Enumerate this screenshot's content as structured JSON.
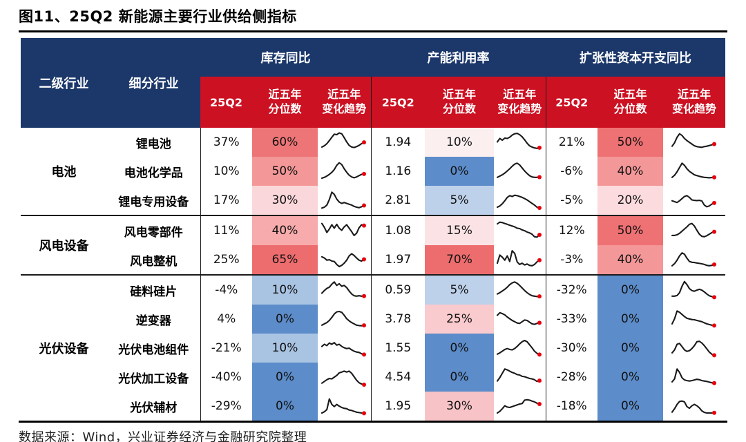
{
  "title": "图11、25Q2 新能源主要行业供给侧指标",
  "source_note": "数据来源：Wind，兴业证券经济与金融研究院整理",
  "colors": {
    "header_navy": "#1C386B",
    "header_red": "#CC1122",
    "scale_high_red": "#ED6D6F",
    "scale_low_blue": "#5C8CC9",
    "spark_line": "#1a1a1a",
    "spark_dot": "#E8000D"
  },
  "chart_data": {
    "type": "table",
    "title": "图11、25Q2 新能源主要行业供给侧指标",
    "header": {
      "col_industry": "二级行业",
      "col_sub": "细分行业",
      "groups": [
        "库存同比",
        "产能利用率",
        "扩张性资本开支同比"
      ],
      "sub_q": "25Q2",
      "sub_pct": "近五年\n分位数",
      "sub_trend": "近五年\n变化趋势"
    },
    "row_groups": [
      {
        "industry": "电池",
        "rows": [
          {
            "name": "锂电池",
            "metrics": [
              {
                "q": "37%",
                "p": "60%",
                "bg": "#EE7577",
                "spark": [
                  2.6,
                  3.2,
                  4.2,
                  5.6,
                  7.2,
                  8.6,
                  8.4,
                  9.2,
                  8.8,
                  7.0,
                  5.0,
                  3.4,
                  2.6,
                  2.4,
                  2.8,
                  3.4,
                  4.2,
                  4.8
                ]
              },
              {
                "q": "1.94",
                "p": "10%",
                "bg": "#FCEFF0",
                "spark": [
                  5.0,
                  6.6,
                  5.8,
                  6.8,
                  6.6,
                  7.2,
                  8.2,
                  8.8,
                  9.0,
                  8.4,
                  7.4,
                  6.0,
                  4.4,
                  3.2,
                  2.6,
                  2.2,
                  2.0,
                  2.3
                ]
              },
              {
                "q": "21%",
                "p": "50%",
                "bg": "#EE7173",
                "spark": [
                  3.0,
                  4.6,
                  7.2,
                  8.8,
                  8.0,
                  6.6,
                  5.6,
                  4.8,
                  4.0,
                  3.2,
                  2.8,
                  2.6,
                  2.5,
                  2.8,
                  3.0,
                  3.3,
                  3.6,
                  4.0
                ]
              }
            ]
          },
          {
            "name": "电池化学品",
            "metrics": [
              {
                "q": "10%",
                "p": "50%",
                "bg": "#F49798",
                "spark": [
                  1.6,
                  2.0,
                  2.6,
                  3.4,
                  4.4,
                  5.6,
                  7.6,
                  8.8,
                  8.0,
                  6.0,
                  4.4,
                  3.0,
                  2.2,
                  1.8,
                  2.2,
                  2.8,
                  3.4,
                  3.6
                ]
              },
              {
                "q": "1.16",
                "p": "0%",
                "bg": "#5C8CC9",
                "spark": [
                  2.0,
                  2.6,
                  3.2,
                  4.0,
                  5.0,
                  6.0,
                  7.2,
                  8.2,
                  8.6,
                  7.8,
                  6.4,
                  5.0,
                  3.8,
                  2.8,
                  2.2,
                  2.0,
                  2.0,
                  2.1
                ]
              },
              {
                "q": "-6%",
                "p": "40%",
                "bg": "#F49798",
                "spark": [
                  2.0,
                  3.0,
                  4.6,
                  6.6,
                  8.6,
                  7.6,
                  6.0,
                  4.8,
                  4.0,
                  3.2,
                  2.8,
                  2.5,
                  2.2,
                  2.0,
                  1.9,
                  1.8,
                  1.9,
                  2.0
                ]
              }
            ]
          },
          {
            "name": "锂电专用设备",
            "metrics": [
              {
                "q": "17%",
                "p": "30%",
                "bg": "#FAD7DA",
                "spark": [
                  1.2,
                  1.6,
                  2.6,
                  5.2,
                  8.6,
                  7.6,
                  5.4,
                  4.0,
                  3.4,
                  3.8,
                  3.4,
                  3.0,
                  2.6,
                  2.0,
                  1.6,
                  1.4,
                  1.8,
                  2.4
                ]
              },
              {
                "q": "2.81",
                "p": "5%",
                "bg": "#BED1EA",
                "spark": [
                  1.6,
                  2.2,
                  3.2,
                  4.6,
                  6.2,
                  7.0,
                  6.6,
                  7.2,
                  7.0,
                  6.6,
                  6.2,
                  5.6,
                  5.0,
                  4.2,
                  3.4,
                  2.6,
                  1.6,
                  1.3
                ]
              },
              {
                "q": "-5%",
                "p": "20%",
                "bg": "#FBDBDE",
                "spark": [
                  4.6,
                  4.2,
                  3.8,
                  4.6,
                  5.6,
                  6.6,
                  7.0,
                  6.2,
                  5.0,
                  4.8,
                  4.7,
                  4.8,
                  4.5,
                  2.6,
                  1.8,
                  2.2,
                  3.0,
                  3.6
                ]
              }
            ]
          }
        ]
      },
      {
        "industry": "风电设备",
        "rows": [
          {
            "name": "风电零部件",
            "metrics": [
              {
                "q": "11%",
                "p": "40%",
                "bg": "#F7ABAC",
                "spark": [
                  8.2,
                  6.4,
                  4.0,
                  5.6,
                  7.6,
                  6.0,
                  7.8,
                  6.0,
                  5.0,
                  6.6,
                  7.6,
                  6.0,
                  4.4,
                  2.6,
                  3.6,
                  6.2,
                  7.6,
                  7.2
                ]
              },
              {
                "q": "1.08",
                "p": "15%",
                "bg": "#FBE3E5",
                "spark": [
                  8.0,
                  8.8,
                  8.6,
                  8.2,
                  7.8,
                  7.4,
                  7.0,
                  6.6,
                  6.0,
                  5.8,
                  5.2,
                  4.8,
                  4.2,
                  3.8,
                  3.2,
                  2.0,
                  1.8,
                  2.9
                ]
              },
              {
                "q": "12%",
                "p": "50%",
                "bg": "#EE7173",
                "spark": [
                  2.6,
                  2.6,
                  2.9,
                  3.6,
                  4.6,
                  5.6,
                  6.6,
                  7.8,
                  8.2,
                  7.0,
                  5.0,
                  3.2,
                  2.2,
                  2.0,
                  2.5,
                  3.2,
                  3.9,
                  4.3
                ]
              }
            ]
          },
          {
            "name": "风电整机",
            "metrics": [
              {
                "q": "25%",
                "p": "65%",
                "bg": "#ED6D6F",
                "spark": [
                  6.2,
                  5.6,
                  4.6,
                  4.8,
                  4.2,
                  4.0,
                  2.6,
                  1.6,
                  2.2,
                  3.2,
                  4.6,
                  6.6,
                  7.6,
                  6.8,
                  5.6,
                  4.6,
                  4.2,
                  5.0
                ]
              },
              {
                "q": "1.97",
                "p": "70%",
                "bg": "#ED6D6F",
                "spark": [
                  3.2,
                  7.0,
                  6.0,
                  4.6,
                  6.6,
                  4.0,
                  9.0,
                  7.8,
                  3.8,
                  2.6,
                  3.2,
                  2.4,
                  2.8,
                  2.2,
                  2.0,
                  2.6,
                  3.8,
                  4.6
                ]
              },
              {
                "q": "-3%",
                "p": "40%",
                "bg": "#F49798",
                "spark": [
                  2.0,
                  3.0,
                  4.6,
                  6.6,
                  8.0,
                  7.4,
                  5.5,
                  4.0,
                  3.6,
                  3.5,
                  3.3,
                  3.1,
                  2.9,
                  2.6,
                  2.2,
                  2.0,
                  2.2,
                  2.6
                ]
              }
            ]
          }
        ]
      },
      {
        "industry": "光伏设备",
        "rows": [
          {
            "name": "硅料硅片",
            "metrics": [
              {
                "q": "-4%",
                "p": "10%",
                "bg": "#A9C4E3",
                "spark": [
                  3.4,
                  4.6,
                  5.6,
                  6.2,
                  7.6,
                  8.6,
                  7.0,
                  7.8,
                  6.6,
                  7.0,
                  6.0,
                  4.4,
                  3.0,
                  2.2,
                  2.0,
                  2.2,
                  2.0,
                  2.0
                ]
              },
              {
                "q": "0.59",
                "p": "5%",
                "bg": "#BED1EA",
                "spark": [
                  3.0,
                  3.6,
                  4.4,
                  5.2,
                  6.2,
                  7.4,
                  8.2,
                  8.6,
                  8.0,
                  7.0,
                  5.8,
                  4.6,
                  3.6,
                  2.8,
                  2.2,
                  2.0,
                  1.8,
                  1.9
                ]
              },
              {
                "q": "-32%",
                "p": "0%",
                "bg": "#5C8CC9",
                "spark": [
                  2.0,
                  2.0,
                  2.3,
                  3.6,
                  6.6,
                  8.8,
                  7.4,
                  5.5,
                  4.6,
                  4.3,
                  4.8,
                  5.2,
                  4.8,
                  4.0,
                  3.0,
                  2.2,
                  1.8,
                  1.5
                ]
              }
            ]
          },
          {
            "name": "逆变器",
            "metrics": [
              {
                "q": "4%",
                "p": "0%",
                "bg": "#5C8CC9",
                "spark": [
                  2.0,
                  2.6,
                  3.2,
                  4.2,
                  5.6,
                  7.2,
                  8.2,
                  8.4,
                  8.0,
                  6.6,
                  5.0,
                  4.0,
                  3.2,
                  2.6,
                  2.0,
                  1.8,
                  1.7,
                  1.9
                ]
              },
              {
                "q": "3.78",
                "p": "25%",
                "bg": "#F9CACE",
                "spark": [
                  6.6,
                  7.8,
                  7.4,
                  6.8,
                  5.8,
                  5.0,
                  4.2,
                  3.6,
                  3.0,
                  2.8,
                  3.6,
                  4.4,
                  4.2,
                  3.4,
                  2.6,
                  2.4,
                  2.8,
                  3.1
                ]
              },
              {
                "q": "-33%",
                "p": "0%",
                "bg": "#5C8CC9",
                "spark": [
                  2.6,
                  5.0,
                  8.6,
                  8.0,
                  7.0,
                  6.0,
                  5.2,
                  4.9,
                  4.6,
                  4.5,
                  4.2,
                  3.9,
                  3.6,
                  3.1,
                  2.6,
                  2.3,
                  2.0,
                  1.8
                ]
              }
            ]
          },
          {
            "name": "光伏电池组件",
            "metrics": [
              {
                "q": "-21%",
                "p": "10%",
                "bg": "#A9C4E3",
                "spark": [
                  5.6,
                  6.6,
                  6.0,
                  7.2,
                  6.6,
                  7.4,
                  6.2,
                  6.6,
                  5.6,
                  5.0,
                  4.6,
                  4.8,
                  4.0,
                  3.4,
                  3.0,
                  2.8,
                  2.2,
                  1.8
                ]
              },
              {
                "q": "1.55",
                "p": "0%",
                "bg": "#5C8CC9",
                "spark": [
                  2.0,
                  2.6,
                  3.4,
                  4.2,
                  4.6,
                  4.2,
                  4.0,
                  4.6,
                  5.6,
                  6.8,
                  7.8,
                  8.4,
                  7.8,
                  6.4,
                  5.0,
                  3.4,
                  2.4,
                  1.8
                ]
              },
              {
                "q": "-30%",
                "p": "0%",
                "bg": "#5C8CC9",
                "spark": [
                  2.6,
                  4.0,
                  6.6,
                  7.0,
                  5.5,
                  4.0,
                  3.3,
                  3.6,
                  4.6,
                  6.0,
                  7.8,
                  8.0,
                  7.2,
                  6.0,
                  4.5,
                  3.0,
                  2.0,
                  1.5
                ]
              }
            ]
          },
          {
            "name": "光伏加工设备",
            "metrics": [
              {
                "q": "-40%",
                "p": "0%",
                "bg": "#5C8CC9",
                "spark": [
                  2.0,
                  2.8,
                  3.6,
                  4.2,
                  4.0,
                  4.8,
                  5.6,
                  6.8,
                  7.2,
                  7.6,
                  7.2,
                  7.6,
                  6.6,
                  5.0,
                  3.4,
                  2.2,
                  1.6,
                  1.3
                ]
              },
              {
                "q": "4.54",
                "p": "0%",
                "bg": "#5C8CC9",
                "spark": [
                  3.0,
                  4.6,
                  6.6,
                  8.6,
                  8.2,
                  7.6,
                  7.0,
                  6.6,
                  6.0,
                  5.8,
                  5.2,
                  5.0,
                  4.6,
                  4.2,
                  4.0,
                  3.6,
                  2.8,
                  3.2
                ]
              },
              {
                "q": "-28%",
                "p": "0%",
                "bg": "#5C8CC9",
                "spark": [
                  2.6,
                  4.0,
                  8.6,
                  7.0,
                  4.5,
                  3.5,
                  3.2,
                  3.0,
                  3.2,
                  3.5,
                  3.8,
                  3.6,
                  3.2,
                  3.0,
                  2.8,
                  2.5,
                  2.2,
                  2.0
                ]
              }
            ]
          },
          {
            "name": "光伏辅材",
            "metrics": [
              {
                "q": "-29%",
                "p": "0%",
                "bg": "#5C8CC9",
                "spark": [
                  1.6,
                  2.2,
                  3.2,
                  8.2,
                  5.6,
                  4.6,
                  5.6,
                  4.8,
                  4.2,
                  3.8,
                  3.6,
                  3.0,
                  2.8,
                  2.4,
                  2.0,
                  1.8,
                  1.6,
                  1.5
                ]
              },
              {
                "q": "1.95",
                "p": "30%",
                "bg": "#F8C3C7",
                "spark": [
                  1.6,
                  2.4,
                  3.6,
                  5.0,
                  4.4,
                  4.2,
                  4.6,
                  5.0,
                  5.4,
                  5.8,
                  6.0,
                  7.6,
                  7.8,
                  7.6,
                  7.2,
                  6.8,
                  6.2,
                  5.8
                ]
              },
              {
                "q": "-18%",
                "p": "0%",
                "bg": "#5C8CC9",
                "spark": [
                  2.0,
                  3.6,
                  5.6,
                  7.0,
                  7.2,
                  6.8,
                  4.6,
                  3.8,
                  5.0,
                  5.6,
                  5.0,
                  4.0,
                  2.6,
                  1.9,
                  1.6,
                  1.6,
                  1.6,
                  1.7
                ]
              }
            ]
          }
        ]
      }
    ]
  }
}
